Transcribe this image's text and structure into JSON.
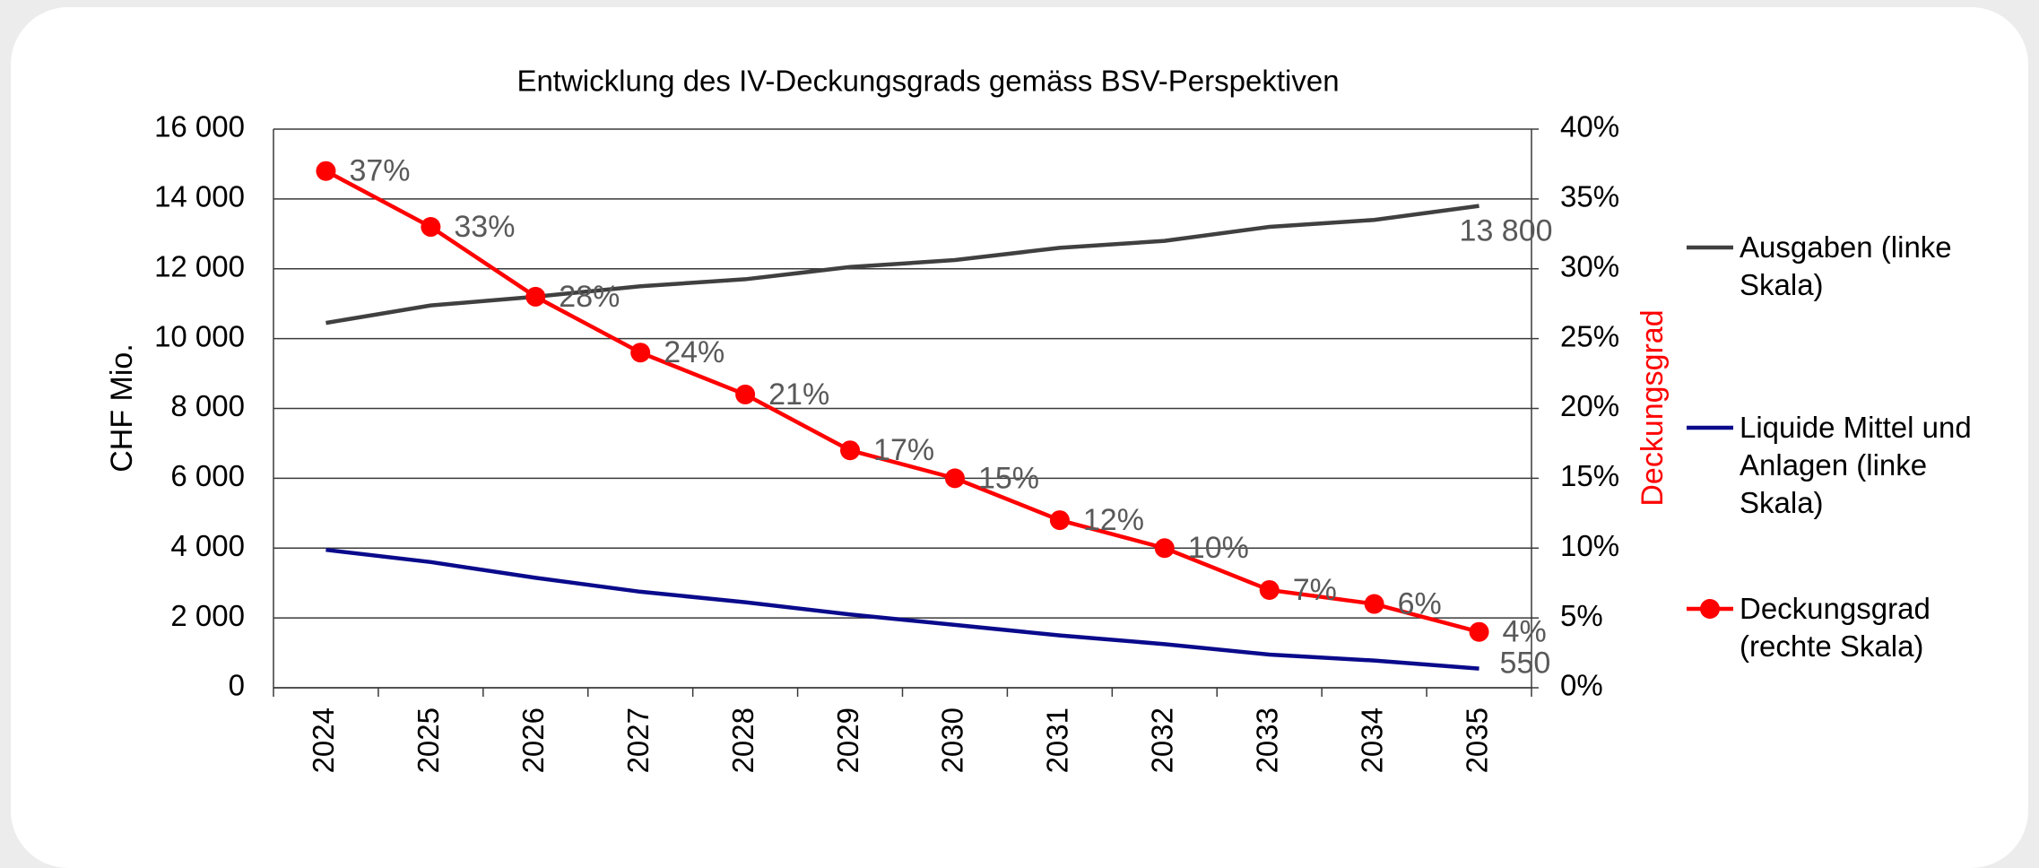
{
  "chart_data": {
    "type": "line",
    "title": "Entwicklung des IV-Deckungsgrads gemäss BSV-Perspektiven",
    "y_label": "CHF Mio.",
    "y2_label": "Deckungsgrad",
    "categories": [
      "2024",
      "2025",
      "2026",
      "2027",
      "2028",
      "2029",
      "2030",
      "2031",
      "2032",
      "2033",
      "2034",
      "2035"
    ],
    "series": [
      {
        "name": "Ausgaben (linke Skala)",
        "color": "#404040",
        "values": [
          10450,
          10950,
          11200,
          11500,
          11700,
          12050,
          12250,
          12600,
          12800,
          13200,
          13400,
          13800
        ],
        "value_labels": [
          null,
          null,
          null,
          null,
          null,
          null,
          null,
          null,
          null,
          null,
          null,
          "13 800"
        ]
      },
      {
        "name": "Liquide Mittel und Anlagen (linke Skala)",
        "color": "#0a0a8c",
        "values": [
          3950,
          3600,
          3150,
          2750,
          2450,
          2100,
          1800,
          1500,
          1250,
          950,
          780,
          550
        ],
        "value_labels": [
          null,
          null,
          null,
          null,
          null,
          null,
          null,
          null,
          null,
          null,
          null,
          "550"
        ]
      },
      {
        "name": "Deckungsgrad (rechte Skala)",
        "color": "#ff0000",
        "axis": "y2",
        "markers": true,
        "values": [
          37,
          33,
          28,
          24,
          21,
          17,
          15,
          12,
          10,
          7,
          6,
          4
        ],
        "value_labels": [
          "37%",
          "33%",
          "28%",
          "24%",
          "21%",
          "17%",
          "15%",
          "12%",
          "10%",
          "7%",
          "6%",
          "4%"
        ]
      }
    ],
    "ylim": [
      0,
      16000
    ],
    "yticks": [
      0,
      {
        "value": 2000,
        "label": "2 000"
      },
      {
        "value": 4000,
        "label": "4 000"
      },
      {
        "value": 6000,
        "label": "6 000"
      },
      {
        "value": 8000,
        "label": "8 000"
      },
      {
        "value": 10000,
        "label": "10 000"
      },
      {
        "value": 12000,
        "label": "12 000"
      },
      {
        "value": 14000,
        "label": "14 000"
      },
      {
        "value": 16000,
        "label": "16 000"
      }
    ],
    "y2lim": [
      0,
      40
    ],
    "y2ticks": [
      {
        "value": 0,
        "label": "0%"
      },
      {
        "value": 5,
        "label": "5%"
      },
      {
        "value": 10,
        "label": "10%"
      },
      {
        "value": 15,
        "label": "15%"
      },
      {
        "value": 20,
        "label": "20%"
      },
      {
        "value": 25,
        "label": "25%"
      },
      {
        "value": 30,
        "label": "30%"
      },
      {
        "value": 35,
        "label": "35%"
      },
      {
        "value": 40,
        "label": "40%"
      }
    ],
    "grid": true,
    "legend": "right"
  }
}
